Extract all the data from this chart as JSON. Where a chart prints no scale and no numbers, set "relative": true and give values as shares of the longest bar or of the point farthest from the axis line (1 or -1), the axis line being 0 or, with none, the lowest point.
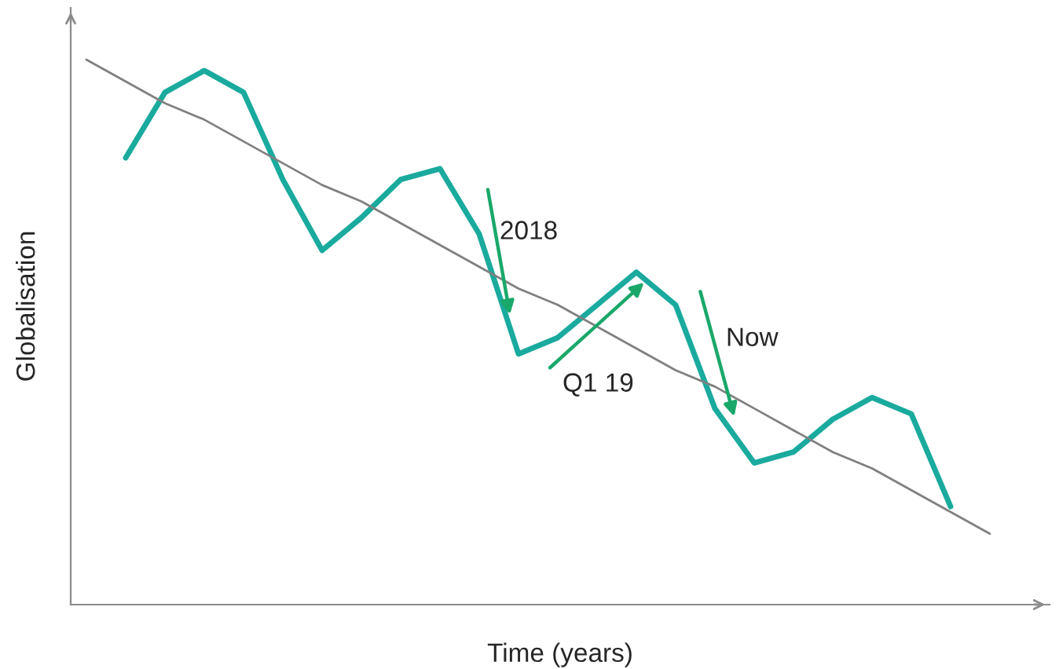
{
  "chart_data": {
    "type": "line",
    "relative": true,
    "xlabel": "Time (years)",
    "ylabel": "Globalisation",
    "categories": [
      null,
      null,
      null,
      null,
      null,
      null,
      null,
      null,
      null,
      null,
      null,
      null,
      null,
      null,
      null,
      null,
      null,
      null,
      null,
      null,
      null,
      null,
      null,
      null
    ],
    "series": [
      {
        "color": "#1aaa9e",
        "values": [
          null,
          0.82,
          0.94,
          0.98,
          0.94,
          0.78,
          0.65,
          0.71,
          0.78,
          0.8,
          0.68,
          0.46,
          0.49,
          0.55,
          0.61,
          0.55,
          0.36,
          0.26,
          0.28,
          0.34,
          0.38,
          0.35,
          0.18,
          null
        ]
      },
      {
        "color": "#808080",
        "values": [
          1.0,
          0.96,
          0.92,
          0.89,
          0.85,
          0.81,
          0.77,
          0.74,
          0.7,
          0.66,
          0.62,
          0.58,
          0.55,
          0.51,
          0.47,
          0.43,
          0.4,
          0.36,
          0.32,
          0.28,
          0.25,
          0.21,
          0.17,
          0.13
        ]
      }
    ],
    "annotations": [
      "2018",
      "Q1 19",
      "Now"
    ],
    "grid": false,
    "legend": false,
    "marker": "none",
    "line_style": "solid"
  }
}
